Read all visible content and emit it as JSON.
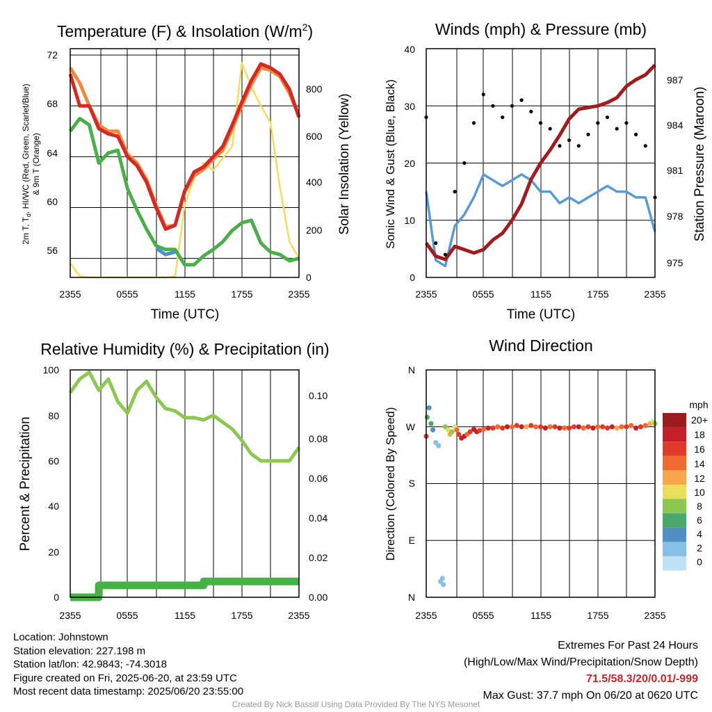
{
  "colors": {
    "temp_red": "#d42a26",
    "temp_orange": "#f08a3c",
    "dewpoint_green": "#4aae4a",
    "windchill_blue": "#4d90c8",
    "insolation_yellow": "#f5dc5a",
    "wind_blue": "#5a9ad2",
    "pressure_maroon": "#a01c1e",
    "rh_green": "#8cc84f",
    "precip_green": "#44b344"
  },
  "x_ticks": [
    "2355",
    "0555",
    "1155",
    "1755",
    "2355"
  ],
  "charts": {
    "temperature": {
      "title_prefix": "Temperature (F) & Insolation (W/m",
      "title_sup": "2",
      "title_suffix": ")",
      "ylabel_line1": "2m T, T",
      "ylabel_sub": "d",
      "ylabel_line1_rest": ", HI/WC (Red, Green, Scarlet/Blue)",
      "ylabel_line2": "& 9m T (Orange)",
      "y2label": "Solar Insolation (Yellow)",
      "xlabel": "Time (UTC)",
      "yticks": [
        "56",
        "60",
        "64",
        "68",
        "72"
      ],
      "y2ticks": [
        "0",
        "200",
        "400",
        "600",
        "800"
      ]
    },
    "winds": {
      "title": "Winds (mph) & Pressure (mb)",
      "ylabel": "Sonic Wind & Gust (Blue, Black)",
      "y2label": "Station Pressure (Maroon)",
      "xlabel": "Time (UTC)",
      "yticks": [
        "0",
        "10",
        "20",
        "30",
        "40"
      ],
      "y2ticks": [
        "975",
        "978",
        "981",
        "984",
        "987"
      ]
    },
    "humidity": {
      "title": "Relative Humidity (%) & Precipitation (in)",
      "ylabel": "Percent & Precipitation",
      "yticks": [
        "0",
        "20",
        "40",
        "60",
        "80",
        "100"
      ],
      "y2ticks": [
        "0.00",
        "0.02",
        "0.04",
        "0.06",
        "0.08",
        "0.10"
      ]
    },
    "direction": {
      "title": "Wind Direction",
      "ylabel": "Direction (Colored By Speed)",
      "yticks": [
        "N",
        "E",
        "S",
        "W",
        "N"
      ],
      "colorbar_title": "mph",
      "colorbar_labels": [
        "20+",
        "18",
        "16",
        "14",
        "12",
        "10",
        "8",
        "6",
        "4",
        "2",
        "0"
      ],
      "colorbar_colors": [
        "#9b1b1e",
        "#c4202a",
        "#e03a2c",
        "#f06a30",
        "#f7a64a",
        "#e8e05a",
        "#8cc84f",
        "#4aa86a",
        "#4f8fc4",
        "#86c0e6",
        "#bfe3f5"
      ]
    }
  },
  "chart_data": [
    {
      "type": "line",
      "title": "Temperature (F) & Insolation (W/m2)",
      "xlabel": "Time (UTC)",
      "ylabel": "2m T, Td, HI/WC (Red, Green, Scarlet/Blue) & 9m T (Orange)",
      "y2label": "Solar Insolation (Yellow)",
      "x": [
        0,
        1,
        2,
        3,
        4,
        5,
        6,
        7,
        8,
        9,
        10,
        11,
        12,
        13,
        14,
        15,
        16,
        17,
        18,
        19,
        20,
        21,
        22,
        23,
        24
      ],
      "ylim": [
        54.5,
        72.5
      ],
      "y2lim": [
        0,
        960
      ],
      "series": [
        {
          "name": "2m T",
          "axis": "left",
          "values": [
            70.5,
            68.0,
            68.0,
            66.2,
            65.8,
            65.6,
            64.0,
            63.3,
            62.0,
            60.0,
            58.3,
            58.6,
            61.3,
            62.8,
            63.2,
            64.0,
            64.8,
            66.5,
            68.3,
            70.0,
            71.3,
            71.0,
            70.5,
            69.3,
            67.1
          ]
        },
        {
          "name": "9m T",
          "axis": "left",
          "values": [
            71.0,
            69.8,
            68.0,
            66.5,
            66.0,
            66.0,
            64.2,
            63.5,
            62.2,
            60.2,
            58.5,
            58.6,
            61.2,
            62.5,
            63.0,
            63.8,
            64.5,
            66.2,
            68.0,
            69.7,
            71.0,
            70.8,
            70.3,
            69.0,
            67.2
          ]
        },
        {
          "name": "Td",
          "axis": "left",
          "values": [
            66.0,
            67.0,
            66.5,
            63.5,
            64.3,
            64.5,
            61.5,
            59.8,
            58.3,
            57.0,
            56.7,
            56.7,
            55.5,
            55.5,
            56.2,
            56.7,
            57.3,
            58.2,
            58.8,
            59.0,
            57.2,
            56.5,
            56.3,
            55.8,
            56.0
          ]
        },
        {
          "name": "HI/WC",
          "axis": "left",
          "values": [
            null,
            null,
            null,
            null,
            null,
            null,
            null,
            null,
            null,
            56.8,
            56.3,
            56.5,
            null,
            null,
            null,
            null,
            null,
            null,
            null,
            null,
            null,
            null,
            null,
            null,
            null
          ]
        },
        {
          "name": "Solar Insolation",
          "axis": "right",
          "values": [
            60,
            5,
            0,
            0,
            0,
            0,
            0,
            0,
            0,
            0,
            0,
            5,
            300,
            420,
            480,
            450,
            500,
            550,
            900,
            800,
            720,
            650,
            380,
            150,
            80
          ]
        }
      ]
    },
    {
      "type": "line",
      "title": "Winds (mph) & Pressure (mb)",
      "xlabel": "Time (UTC)",
      "ylabel": "Sonic Wind & Gust (Blue, Black)",
      "y2label": "Station Pressure (Maroon)",
      "x": [
        0,
        1,
        2,
        3,
        4,
        5,
        6,
        7,
        8,
        9,
        10,
        11,
        12,
        13,
        14,
        15,
        16,
        17,
        18,
        19,
        20,
        21,
        22,
        23,
        24
      ],
      "ylim": [
        0,
        40
      ],
      "y2lim": [
        974.5,
        988.5
      ],
      "series": [
        {
          "name": "Sonic Wind",
          "axis": "left",
          "values": [
            15,
            3,
            2,
            9,
            11,
            14,
            18,
            17,
            16,
            17,
            18,
            17,
            15,
            15,
            13,
            14,
            13,
            14,
            15,
            16,
            15,
            15,
            14,
            14,
            8
          ]
        },
        {
          "name": "Gust",
          "axis": "left",
          "values": [
            28,
            6,
            4,
            15,
            20,
            27,
            32,
            30,
            28,
            30,
            31,
            29,
            27,
            26,
            23,
            24,
            23,
            25,
            27,
            28,
            26,
            27,
            25,
            23,
            14
          ]
        },
        {
          "name": "Station Pressure",
          "axis": "right",
          "values": [
            976.6,
            975.8,
            975.6,
            976.4,
            976.2,
            976.0,
            976.2,
            976.8,
            977.2,
            978.0,
            979.0,
            980.5,
            981.5,
            982.3,
            983.2,
            984.2,
            984.8,
            984.9,
            985.0,
            985.2,
            985.5,
            986.2,
            986.6,
            986.9,
            987.5
          ]
        }
      ]
    },
    {
      "type": "line",
      "title": "Relative Humidity (%) & Precipitation (in)",
      "ylabel": "Percent & Precipitation",
      "x": [
        0,
        1,
        2,
        3,
        4,
        5,
        6,
        7,
        8,
        9,
        10,
        11,
        12,
        13,
        14,
        15,
        16,
        17,
        18,
        19,
        20,
        21,
        22,
        23,
        24
      ],
      "ylim": [
        0,
        100
      ],
      "y2lim": [
        0,
        0.115
      ],
      "series": [
        {
          "name": "Relative Humidity",
          "axis": "left",
          "values": [
            90,
            96,
            99,
            91,
            96,
            86,
            81,
            91,
            95,
            88,
            83,
            82,
            79,
            79,
            78,
            80,
            77,
            74,
            69,
            63,
            60,
            60,
            60,
            60,
            66
          ]
        },
        {
          "name": "Precipitation",
          "axis": "right",
          "values": [
            0.0,
            0.0,
            0.0,
            0.006,
            0.006,
            0.006,
            0.006,
            0.006,
            0.006,
            0.006,
            0.006,
            0.006,
            0.006,
            0.006,
            0.008,
            0.008,
            0.008,
            0.008,
            0.008,
            0.008,
            0.008,
            0.008,
            0.008,
            0.008,
            0.008
          ]
        }
      ]
    },
    {
      "type": "scatter",
      "title": "Wind Direction",
      "ylabel": "Direction (Colored By Speed)",
      "ylim": [
        0,
        360
      ],
      "x": [
        0.0,
        0.1,
        0.3,
        0.5,
        0.7,
        1.0,
        1.3,
        1.5,
        1.7,
        1.8,
        2.0,
        2.3,
        2.5,
        2.7,
        3.0,
        3.2,
        3.4,
        3.7,
        4.0,
        4.3,
        4.6,
        5.0,
        5.3,
        5.6,
        6.0,
        6.5,
        7.0,
        7.5,
        8.0,
        8.5,
        9.0,
        9.5,
        10.0,
        10.5,
        11.0,
        11.5,
        12.0,
        12.5,
        13.0,
        13.5,
        14.0,
        14.5,
        15.0,
        15.5,
        16.0,
        16.5,
        17.0,
        17.5,
        18.0,
        18.5,
        19.0,
        19.5,
        20.0,
        20.5,
        21.0,
        21.5,
        22.0,
        22.5,
        23.0,
        23.5,
        23.8,
        24.0
      ],
      "y": [
        255,
        285,
        300,
        275,
        265,
        245,
        240,
        25,
        30,
        20,
        270,
        265,
        258,
        262,
        270,
        265,
        258,
        252,
        255,
        258,
        262,
        266,
        262,
        264,
        266,
        268,
        268,
        270,
        268,
        270,
        270,
        272,
        270,
        270,
        272,
        270,
        270,
        268,
        270,
        270,
        268,
        268,
        268,
        270,
        270,
        268,
        270,
        268,
        270,
        270,
        268,
        270,
        268,
        270,
        270,
        272,
        268,
        270,
        272,
        275,
        278,
        275
      ],
      "speed": [
        15,
        5,
        3,
        6,
        4,
        2,
        2,
        2,
        2,
        2,
        8,
        10,
        12,
        8,
        10,
        14,
        16,
        18,
        18,
        14,
        16,
        18,
        18,
        16,
        14,
        18,
        16,
        14,
        16,
        18,
        14,
        16,
        18,
        12,
        16,
        14,
        16,
        18,
        14,
        16,
        18,
        14,
        16,
        16,
        18,
        14,
        16,
        18,
        14,
        16,
        16,
        18,
        12,
        14,
        16,
        14,
        18,
        16,
        14,
        12,
        10,
        8
      ]
    }
  ],
  "footer": {
    "location": "Location: Johnstown",
    "elevation": "Station elevation: 227.198 m",
    "latlon": "Station lat/lon: 42.9843; -74.3018",
    "created": "Figure created on Fri, 2025-06-20, at 23:59 UTC",
    "recent": "Most recent data timestamp: 2025/06/20 23:55:00",
    "extremes_title": "Extremes For Past 24 Hours",
    "extremes_subtitle": "(High/Low/Max Wind/Precipitation/Snow Depth)",
    "extremes_values": "71.5/58.3/20/0.01/-999",
    "max_gust": "Max Gust: 37.7 mph On 06/20 at 0620 UTC",
    "credit": "Created By Nick Bassill Using Data Provided By The NYS Mesonet"
  }
}
